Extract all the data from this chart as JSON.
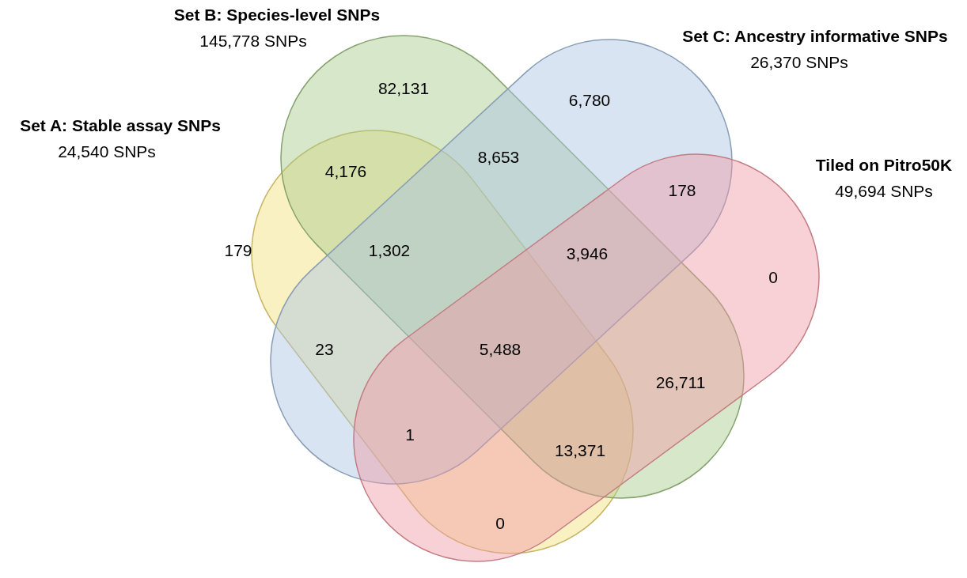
{
  "chart_data": {
    "type": "other",
    "annotations": [
      "Set A: Stable assay SNPs",
      "24,540 SNPs",
      "Set B: Species-level SNPs",
      "145,778 SNPs",
      "Set C: Ancestry informative SNPs",
      "26,370 SNPs",
      "Tiled on Pitro50K",
      "49,694 SNPs"
    ],
    "categories": [
      null,
      null,
      null,
      null,
      null,
      null,
      null,
      null,
      null,
      null,
      null,
      null,
      null,
      null,
      null
    ],
    "values": [
      82131,
      6780,
      4176,
      8653,
      178,
      179,
      1302,
      3946,
      0,
      23,
      5488,
      26711,
      1,
      13371,
      0
    ],
    "value_labels": [
      "82,131",
      "6,780",
      "4,176",
      "8,653",
      "178",
      "179",
      "1,302",
      "3,946",
      "0",
      "23",
      "5,488",
      "26,711",
      "1",
      "13,371",
      "0"
    ]
  }
}
